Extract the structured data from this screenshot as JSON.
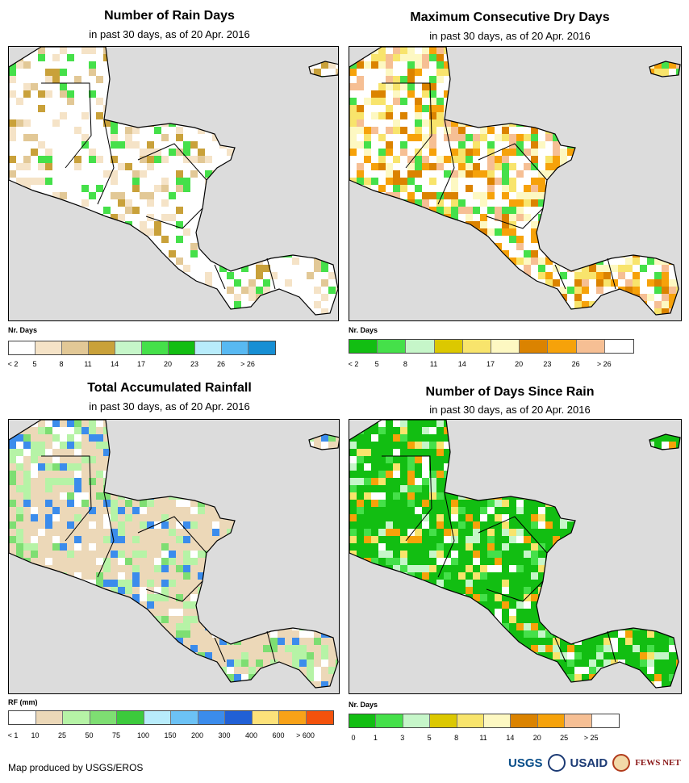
{
  "panels": [
    {
      "id": "rain-days",
      "title": "Number of Rain Days",
      "subtitle": "in past 30 days, as of 20 Apr. 2016",
      "legend_title": "Nr. Days",
      "legend_colors": [
        "#ffffff",
        "#f5e3c7",
        "#e2c896",
        "#c9a13a",
        "#c6f6c9",
        "#45e04a",
        "#12be12",
        "#b8ecfb",
        "#58b9f2",
        "#178fd4"
      ],
      "legend_labels": [
        "< 2",
        "5",
        "8",
        "11",
        "14",
        "17",
        "20",
        "23",
        "26",
        "> 26"
      ],
      "base_color": "#ffffff",
      "accent_colors": [
        "#f5e3c7",
        "#e2c896",
        "#f5e3c7",
        "#c9a13a",
        "#45e04a"
      ],
      "accent_density": 0.32
    },
    {
      "id": "dry-days",
      "title": "Maximum Consecutive Dry Days",
      "subtitle": "in past 30 days, as of 20 Apr. 2016",
      "legend_title": "Nr. Days",
      "legend_colors": [
        "#12be12",
        "#45e04a",
        "#c6f6c9",
        "#dcc800",
        "#f8e46c",
        "#fdf8c2",
        "#db8300",
        "#f6a20a",
        "#f6bf94",
        "#ffffff"
      ],
      "legend_labels": [
        "< 2",
        "5",
        "8",
        "11",
        "14",
        "17",
        "20",
        "23",
        "26",
        "> 26"
      ],
      "base_color": "#ffffff",
      "accent_colors": [
        "#f6a20a",
        "#db8300",
        "#f6bf94",
        "#f8e46c",
        "#fdf8c2",
        "#45e04a"
      ],
      "accent_density": 0.62
    },
    {
      "id": "total-rainfall",
      "title": "Total Accumulated Rainfall",
      "subtitle": "in past 30 days, as of 20 Apr. 2016",
      "legend_title": "RF (mm)",
      "legend_colors": [
        "#ffffff",
        "#ecd8b8",
        "#b6f3a6",
        "#7ede72",
        "#3cca3c",
        "#b8ecfb",
        "#6cc2f5",
        "#3b8cec",
        "#2160d6",
        "#fde27a",
        "#f8a218",
        "#f4520c"
      ],
      "legend_labels": [
        "< 1",
        "10",
        "25",
        "50",
        "75",
        "100",
        "150",
        "200",
        "300",
        "400",
        "600",
        "> 600"
      ],
      "base_color": "#ecd8b8",
      "accent_colors": [
        "#ffffff",
        "#b6f3a6",
        "#7ede72",
        "#b6f3a6",
        "#3b8cec"
      ],
      "accent_density": 0.45
    },
    {
      "id": "days-since-rain",
      "title": "Number of Days Since Rain",
      "subtitle": "in past 30 days, as of 20 Apr. 2016",
      "legend_title": "Nr. Days",
      "legend_colors": [
        "#12be12",
        "#45e04a",
        "#c6f6c9",
        "#dcc800",
        "#f8e46c",
        "#fdf8c2",
        "#db8300",
        "#f6a20a",
        "#f6bf94",
        "#ffffff"
      ],
      "legend_labels": [
        "0",
        "1",
        "3",
        "5",
        "8",
        "11",
        "14",
        "20",
        "25",
        "> 25"
      ],
      "base_color": "#12be12",
      "accent_colors": [
        "#45e04a",
        "#c6f6c9",
        "#ffffff",
        "#f8e46c",
        "#f6a20a"
      ],
      "accent_density": 0.4
    }
  ],
  "credit": "Map produced by USGS/EROS",
  "logos": {
    "usgs": "USGS",
    "usaid": "USAID",
    "fews": "FEWS NET"
  }
}
